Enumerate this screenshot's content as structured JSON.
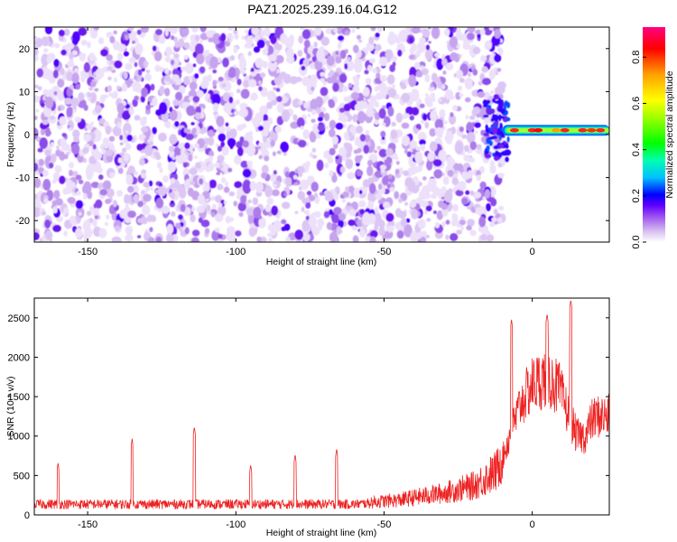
{
  "title": "PAZ1.2025.239.16.04.G12",
  "chart_data": [
    {
      "type": "heatmap",
      "xlabel": "Height of straight line (km)",
      "ylabel": "Frequency (Hz)",
      "xlim": [
        -168,
        26
      ],
      "ylim": [
        -25,
        25
      ],
      "xticks": [
        -150,
        -100,
        -50,
        0
      ],
      "yticks": [
        -20,
        -10,
        0,
        10,
        20
      ],
      "colorbar": {
        "label": "Normalized spectral amplitude",
        "range": [
          0.0,
          0.93
        ],
        "ticks": [
          0.0,
          0.2,
          0.4,
          0.6,
          0.8
        ],
        "tick_labels": [
          "0.0",
          "0.2",
          "0.4",
          "0.6",
          "0.8"
        ],
        "colors": [
          "#ffffff",
          "#d8c0f0",
          "#9c50f0",
          "#6000ff",
          "#0000ff",
          "#00c0ff",
          "#00ffb0",
          "#00ff00",
          "#a0ff00",
          "#ffff00",
          "#ffa000",
          "#ff0000",
          "#ff0080"
        ]
      },
      "noise_region_x": [
        -168,
        -10
      ],
      "signal_band": {
        "x_range": [
          -10,
          26
        ],
        "center_frequency_hz": [
          0.5,
          1.5
        ],
        "peak_amplitude": 0.85
      },
      "grid": false
    },
    {
      "type": "line",
      "xlabel": "Height of straight line (km)",
      "ylabel": "SNR (10 * v/v)",
      "xlim": [
        -168,
        26
      ],
      "ylim": [
        0,
        2750
      ],
      "xticks": [
        -150,
        -100,
        -50,
        0
      ],
      "yticks": [
        0,
        500,
        1000,
        1500,
        2000,
        2500
      ],
      "color": "#ee2222",
      "baseline_x": [
        -168,
        -60,
        -45,
        -30,
        -20,
        -12,
        -8,
        -4,
        0,
        5,
        9,
        12,
        15,
        18,
        20,
        22,
        26
      ],
      "baseline_y": [
        130,
        130,
        170,
        250,
        330,
        500,
        950,
        1400,
        1650,
        1750,
        1600,
        1300,
        1000,
        1000,
        1200,
        1250,
        1250
      ],
      "spikes": [
        {
          "x": -160,
          "y": 660
        },
        {
          "x": -135,
          "y": 970
        },
        {
          "x": -114,
          "y": 1120
        },
        {
          "x": -95,
          "y": 640
        },
        {
          "x": -80,
          "y": 770
        },
        {
          "x": -66,
          "y": 840
        },
        {
          "x": -7,
          "y": 2480
        },
        {
          "x": 5,
          "y": 2550
        },
        {
          "x": 13,
          "y": 2730
        }
      ],
      "grid": false
    }
  ]
}
